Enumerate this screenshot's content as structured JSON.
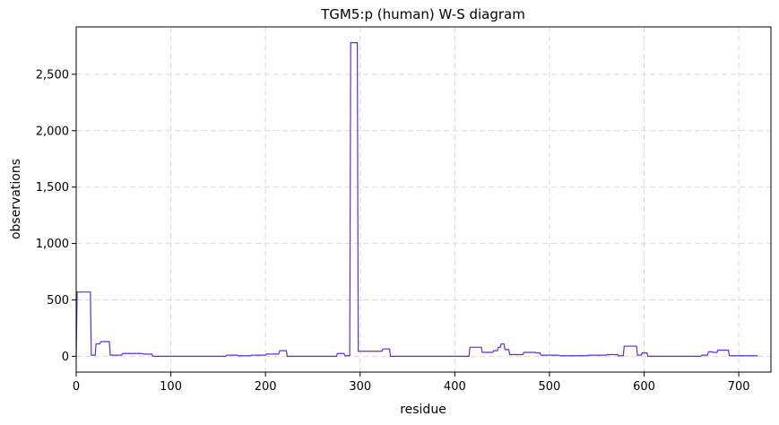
{
  "chart_data": {
    "type": "line",
    "title": "TGM5:p (human) W-S diagram",
    "xlabel": "residue",
    "ylabel": "observations",
    "xlim": [
      0,
      734
    ],
    "ylim": [
      -140,
      2920
    ],
    "xticks": [
      0,
      100,
      200,
      300,
      400,
      500,
      600,
      700
    ],
    "xtick_labels": [
      "0",
      "100",
      "200",
      "300",
      "400",
      "500",
      "600",
      "700"
    ],
    "yticks": [
      0,
      500,
      1000,
      1500,
      2000,
      2500
    ],
    "ytick_labels": [
      "0",
      "500",
      "1,000",
      "1,500",
      "2,000",
      "2,500"
    ],
    "grid": true,
    "line_color": "#5b2ee0",
    "series": [
      {
        "name": "",
        "x": [
          0,
          1,
          15,
          16,
          20,
          21,
          25,
          26,
          35,
          36,
          48,
          49,
          70,
          71,
          80,
          81,
          158,
          159,
          170,
          171,
          184,
          185,
          200,
          201,
          214,
          215,
          222,
          223,
          275,
          276,
          283,
          284,
          289,
          290,
          297,
          298,
          323,
          324,
          331,
          332,
          415,
          416,
          428,
          429,
          440,
          441,
          445,
          446,
          448,
          449,
          452,
          453,
          457,
          458,
          472,
          473,
          485,
          486,
          490,
          491,
          510,
          511,
          540,
          541,
          560,
          561,
          572,
          573,
          578,
          579,
          592,
          593,
          597,
          598,
          603,
          604,
          660,
          661,
          667,
          668,
          672,
          673,
          677,
          678,
          689,
          690,
          720
        ],
        "y": [
          0,
          570,
          570,
          10,
          10,
          110,
          110,
          130,
          130,
          10,
          10,
          25,
          25,
          20,
          20,
          0,
          0,
          10,
          10,
          5,
          5,
          10,
          10,
          20,
          20,
          50,
          50,
          0,
          0,
          25,
          25,
          5,
          5,
          2780,
          2780,
          45,
          45,
          65,
          65,
          0,
          0,
          80,
          80,
          35,
          35,
          50,
          50,
          80,
          80,
          110,
          110,
          60,
          60,
          15,
          15,
          35,
          35,
          30,
          30,
          10,
          10,
          5,
          5,
          10,
          10,
          15,
          15,
          5,
          5,
          90,
          90,
          10,
          10,
          30,
          30,
          0,
          0,
          10,
          10,
          40,
          40,
          35,
          35,
          55,
          55,
          5,
          5
        ]
      }
    ]
  }
}
